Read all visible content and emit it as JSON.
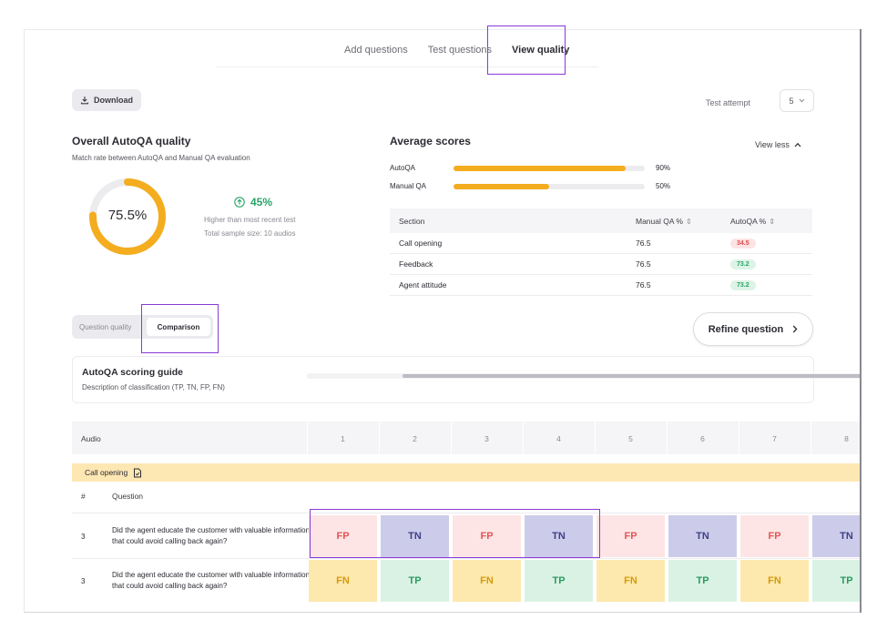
{
  "tabs": [
    {
      "label": "Add questions",
      "active": false
    },
    {
      "label": "Test questions",
      "active": false
    },
    {
      "label": "View quality",
      "active": true
    }
  ],
  "toolbar": {
    "download_label": "Download",
    "test_attempt_label": "Test attempt",
    "test_attempt_value": "5"
  },
  "overall": {
    "title": "Overall AutoQA quality",
    "subtitle": "Match rate between AutoQA and Manual QA evaluation",
    "match_rate_value": 75.5,
    "match_rate_label": "75.5%",
    "change_label": "45%",
    "change_caption": "Higher than most recent test",
    "sample_caption": "Total sample size: 10 audios"
  },
  "average": {
    "title": "Average scores",
    "view_less_label": "View less",
    "bars": [
      {
        "label": "AutoQA",
        "value": 90,
        "value_label": "90%"
      },
      {
        "label": "Manual QA",
        "value": 50,
        "value_label": "50%"
      }
    ],
    "table": {
      "headers": [
        "Section",
        "Manual QA %",
        "AutoQA %"
      ],
      "rows": [
        {
          "section": "Call opening",
          "manual": "76.5",
          "auto": "34.5",
          "auto_status": "red"
        },
        {
          "section": "Feedback",
          "manual": "76.5",
          "auto": "73.2",
          "auto_status": "green"
        },
        {
          "section": "Agent attitude",
          "manual": "76.5",
          "auto": "73.2",
          "auto_status": "green"
        }
      ]
    }
  },
  "segment": {
    "option_1": "Question quality",
    "option_2": "Comparison",
    "selected": "Comparison"
  },
  "refine_label": "Refine question",
  "guide": {
    "title": "AutoQA scoring guide",
    "subtitle": "Description of classification (TP, TN, FP, FN)"
  },
  "grid": {
    "audio_label": "Audio",
    "columns": [
      "1",
      "2",
      "3",
      "4",
      "5",
      "6",
      "7",
      "8"
    ],
    "section_label": "Call opening",
    "num_header": "#",
    "question_header": "Question",
    "rows": [
      {
        "num": "3",
        "question": "Did the agent educate the customer with valuable information that could avoid calling back again?",
        "cells": [
          "FP",
          "TN",
          "FP",
          "TN",
          "FP",
          "TN",
          "FP",
          "TN"
        ]
      },
      {
        "num": "3",
        "question": "Did the agent educate the customer with valuable information that could avoid calling back again?",
        "cells": [
          "FN",
          "TP",
          "FN",
          "TP",
          "FN",
          "TP",
          "FN",
          "TP"
        ]
      }
    ]
  },
  "colors": {
    "accent": "#f4ad1e",
    "highlight_outline": "#8a3ad6",
    "positive": "#28a468",
    "negative": "#e04848"
  },
  "icons": {
    "download": "download-icon",
    "select": "chevron-down-icon",
    "view_less": "chevron-up-icon",
    "change": "arrow-up-circle-icon",
    "sort": "sort-icon",
    "refine": "chevron-right-icon",
    "section": "document-icon"
  }
}
